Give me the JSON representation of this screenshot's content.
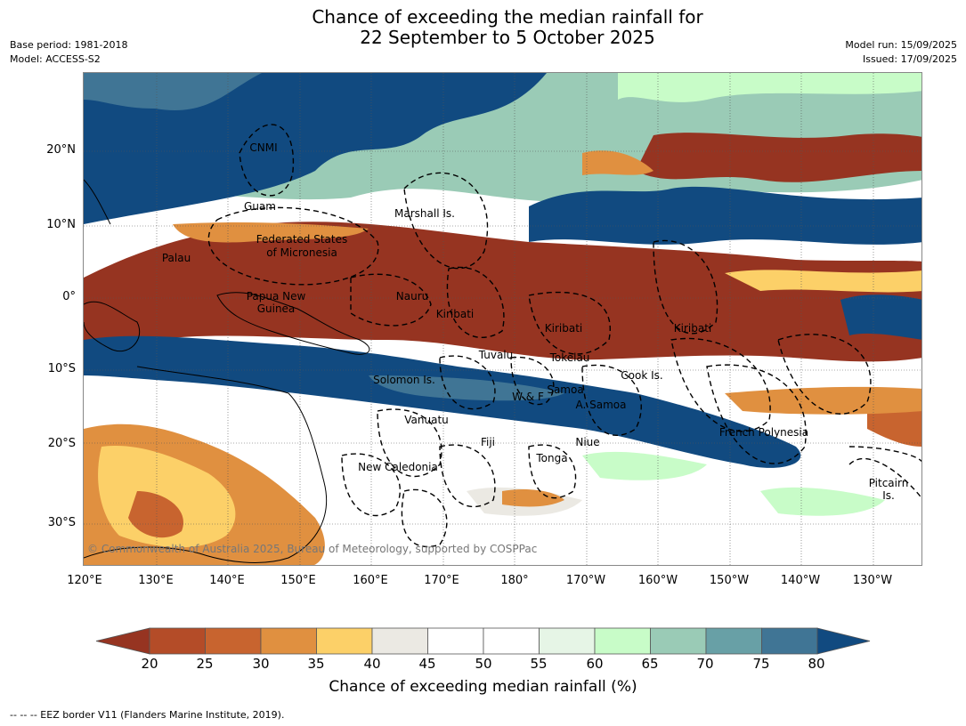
{
  "title": {
    "line1": "Chance of exceeding the median rainfall for",
    "line2": "22 September to 5 October 2025"
  },
  "meta_left": {
    "base_period": "Base period: 1981-2018",
    "model": "Model: ACCESS-S2"
  },
  "meta_right": {
    "model_run": "Model run: 15/09/2025",
    "issued": "Issued: 17/09/2025"
  },
  "map": {
    "lat_labels": [
      "20°N",
      "10°N",
      "0°",
      "10°S",
      "20°S",
      "30°S"
    ],
    "lon_labels": [
      "120°E",
      "130°E",
      "140°E",
      "150°E",
      "160°E",
      "170°E",
      "180°",
      "170°W",
      "160°W",
      "150°W",
      "140°W",
      "130°W"
    ],
    "places": [
      "CNMI",
      "Guam",
      "Marshall Is.",
      "Federated States",
      "of Micronesia",
      "Palau",
      "Papua New",
      "Guinea",
      "Nauru",
      "Kiribati",
      "Kiribati",
      "Kiribati",
      "Tuvalu",
      "Tokelau",
      "Cook Is.",
      "Solomon Is.",
      "W & F",
      "Samoa",
      "A. Samoa",
      "Vanuatu",
      "Fiji",
      "Niue",
      "French Polynesia",
      "Tonga",
      "New Caledonia",
      "Pitcairn",
      "Is."
    ],
    "copyright": "© Commonwealth of Australia 2025, Bureau of Meteorology, supported by COSPPac"
  },
  "colorbar": {
    "ticks": [
      "20",
      "25",
      "30",
      "35",
      "40",
      "45",
      "50",
      "55",
      "60",
      "65",
      "70",
      "75",
      "80"
    ],
    "colors": {
      "below_20": "#963421",
      "20_25": "#b44c28",
      "25_30": "#c8642f",
      "30_35": "#e09040",
      "35_40": "#fcd068",
      "40_45": "#ebe9e3",
      "45_50": "#ffffff",
      "50_55": "#ffffff",
      "55_60": "#e6f5e6",
      "60_65": "#c8fcc8",
      "65_70": "#9acbb6",
      "70_75": "#68a0a6",
      "75_80": "#407595",
      "above_80": "#114a80"
    },
    "label": "Chance of exceeding median rainfall (%)"
  },
  "footer": {
    "eez": "--  --  -- EEZ border V11 (Flanders Marine Institute, 2019)."
  }
}
